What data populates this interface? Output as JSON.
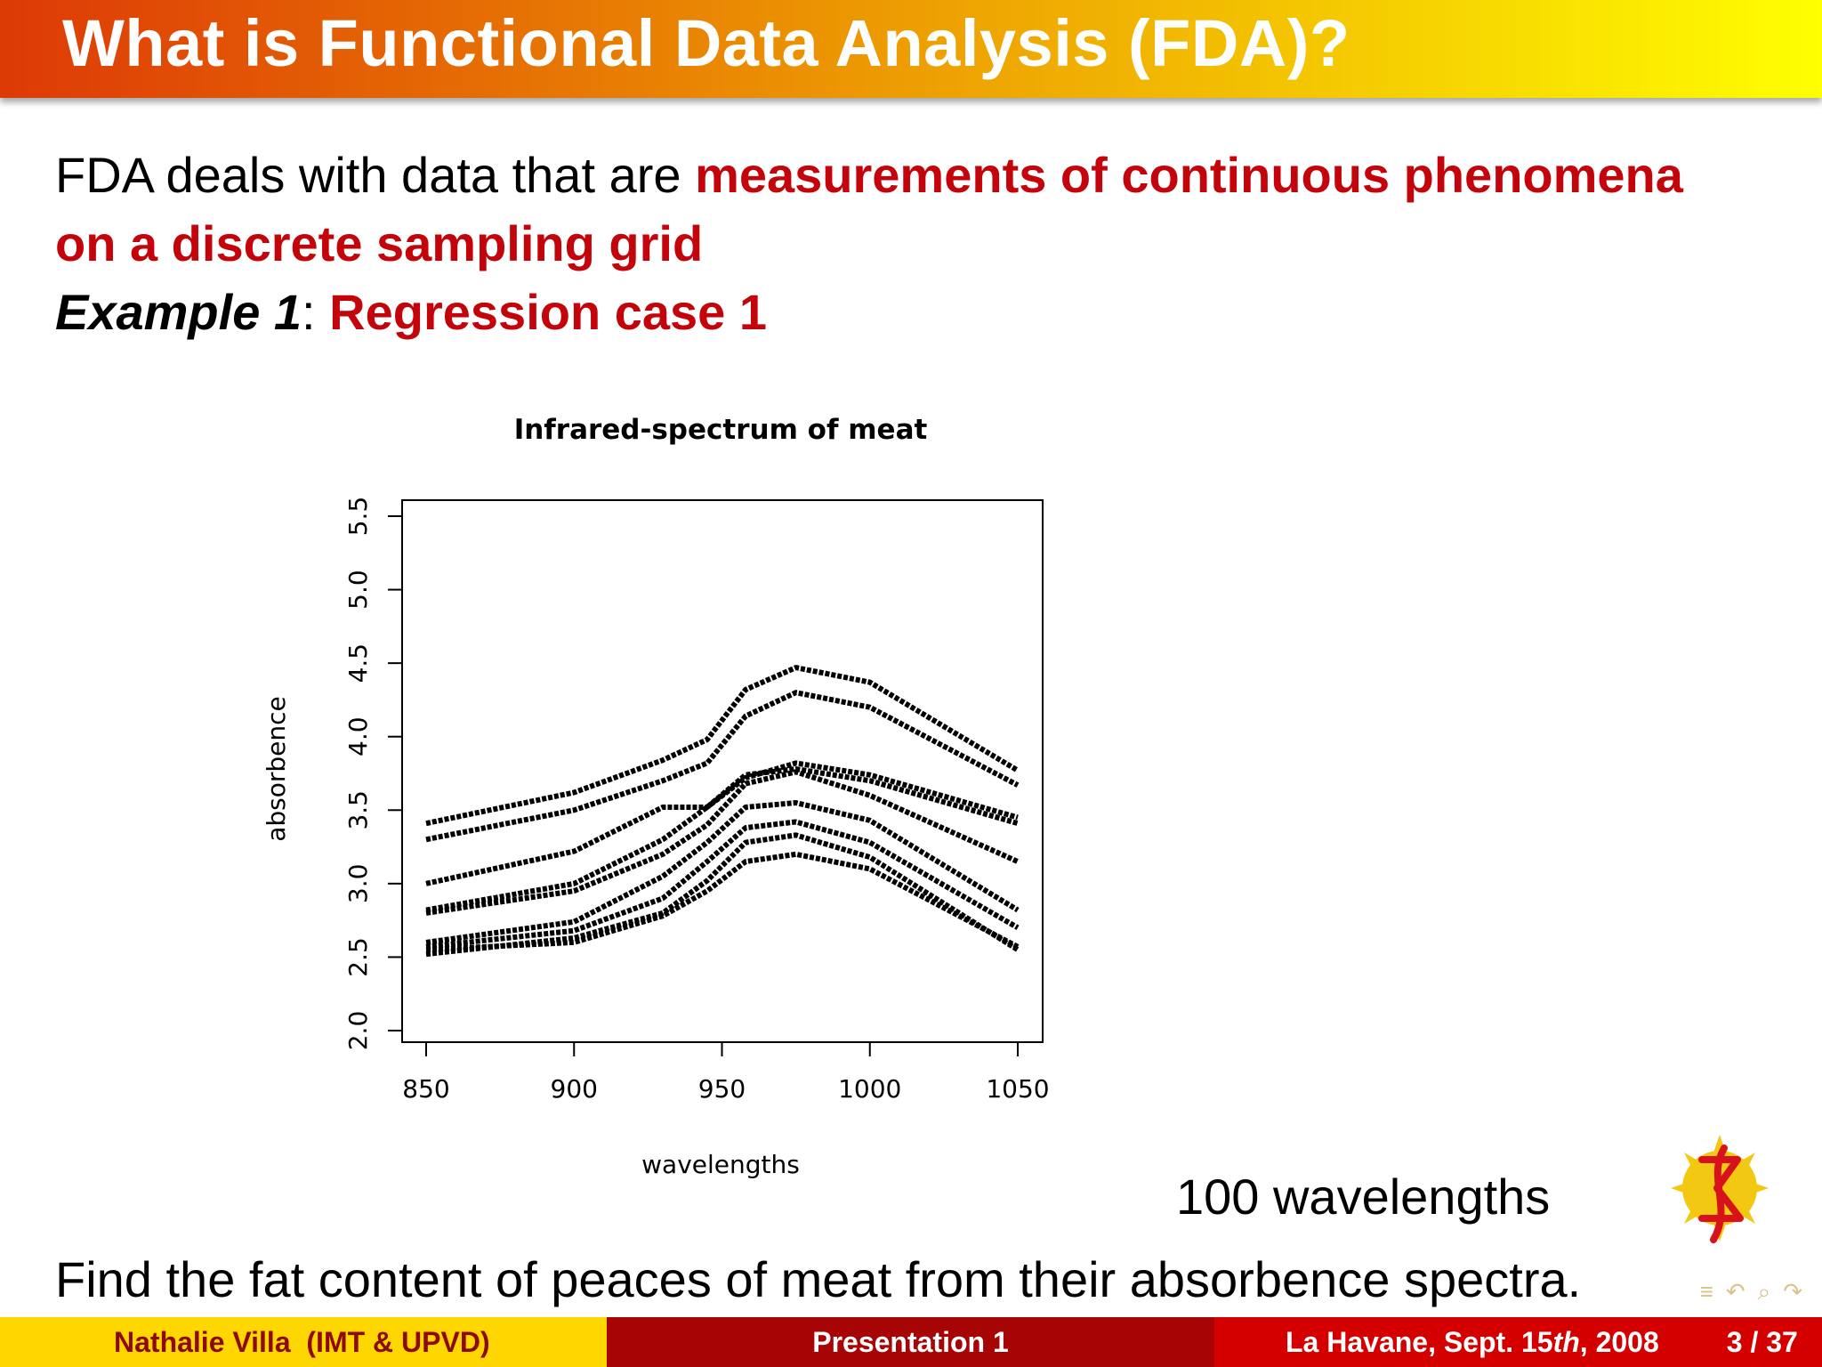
{
  "header": {
    "title": "What is Functional Data Analysis (FDA)?"
  },
  "intro": {
    "plain": "FDA deals with data that are ",
    "highlight_line1": "measurements of continuous phenomena",
    "highlight_line2": "on a discrete sampling grid",
    "example_label": "Example 1",
    "example_sep": ": ",
    "example_title": "Regression case 1"
  },
  "chart_data": {
    "type": "line",
    "title": "Infrared-spectrum of meat",
    "xlabel": "wavelengths",
    "ylabel": "absorbence",
    "xlim": [
      850,
      1050
    ],
    "ylim": [
      2.0,
      5.5
    ],
    "x_ticks": [
      "850",
      "900",
      "950",
      "1000",
      "1050"
    ],
    "y_ticks": [
      "2.0",
      "2.5",
      "3.0",
      "3.5",
      "4.0",
      "4.5",
      "5.0",
      "5.5"
    ],
    "grid": false,
    "series": [
      {
        "x": [
          850,
          900,
          930,
          945,
          958,
          975,
          1000,
          1050
        ],
        "y": [
          3.41,
          3.62,
          3.84,
          3.98,
          4.32,
          4.47,
          4.37,
          3.77
        ]
      },
      {
        "x": [
          850,
          900,
          930,
          945,
          958,
          975,
          1000,
          1050
        ],
        "y": [
          3.3,
          3.5,
          3.7,
          3.82,
          4.14,
          4.3,
          4.2,
          3.67
        ]
      },
      {
        "x": [
          850,
          900,
          930,
          945,
          958,
          975,
          1000,
          1050
        ],
        "y": [
          3.0,
          3.22,
          3.52,
          3.52,
          3.72,
          3.82,
          3.74,
          3.45
        ]
      },
      {
        "x": [
          850,
          900,
          930,
          945,
          958,
          975,
          1000,
          1050
        ],
        "y": [
          2.82,
          3.0,
          3.3,
          3.52,
          3.74,
          3.78,
          3.7,
          3.41
        ]
      },
      {
        "x": [
          850,
          900,
          930,
          945,
          958,
          975,
          1000,
          1050
        ],
        "y": [
          2.8,
          2.95,
          3.2,
          3.4,
          3.68,
          3.76,
          3.6,
          3.15
        ]
      },
      {
        "x": [
          850,
          900,
          930,
          945,
          958,
          975,
          1000,
          1050
        ],
        "y": [
          2.6,
          2.74,
          3.05,
          3.28,
          3.52,
          3.55,
          3.43,
          2.82
        ]
      },
      {
        "x": [
          850,
          900,
          930,
          945,
          958,
          975,
          1000,
          1050
        ],
        "y": [
          2.57,
          2.68,
          2.9,
          3.15,
          3.38,
          3.42,
          3.28,
          2.7
        ]
      },
      {
        "x": [
          850,
          900,
          930,
          945,
          958,
          975,
          1000,
          1050
        ],
        "y": [
          2.52,
          2.63,
          2.8,
          3.02,
          3.28,
          3.33,
          3.18,
          2.55
        ]
      },
      {
        "x": [
          850,
          900,
          930,
          945,
          958,
          975,
          1000,
          1050
        ],
        "y": [
          2.55,
          2.6,
          2.78,
          2.95,
          3.15,
          3.2,
          3.1,
          2.57
        ]
      }
    ]
  },
  "notes": {
    "wavelengths": "100 wavelengths",
    "bottom": "Find the fat content of peaces of meat from their absorbence spectra."
  },
  "footer": {
    "author": "Nathalie Villa  (IMT & UPVD)",
    "presentation": "Presentation 1",
    "date_prefix": "La Havane, Sept. 15",
    "date_suffix": "th",
    "date_year": ", 2008",
    "page": "3 / 37"
  },
  "nav": {
    "icons": [
      "align-icon",
      "undo-icon",
      "search-icon",
      "redo-icon"
    ]
  },
  "colors": {
    "accent_red": "#c4040b",
    "header_start": "#dd3a06",
    "header_end": "#ffff00",
    "footer_left": "#ffd700",
    "footer_mid": "#a70405",
    "footer_right": "#d40000"
  }
}
